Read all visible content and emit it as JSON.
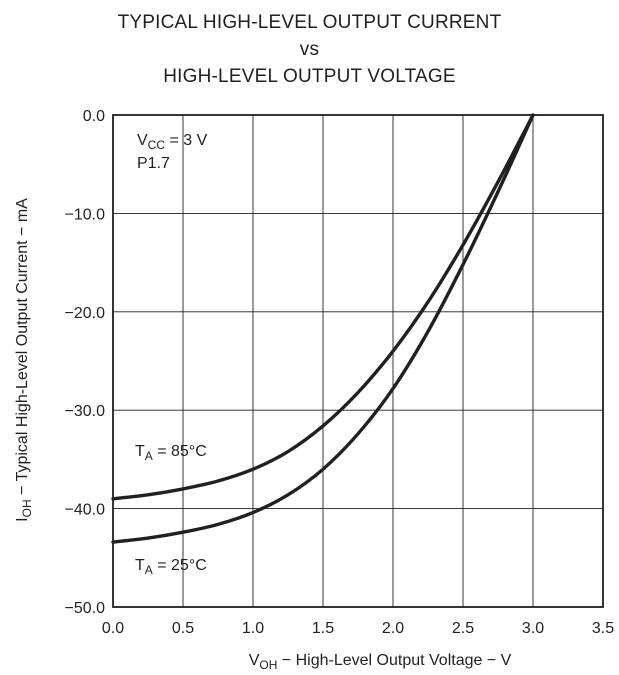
{
  "chart_data": {
    "type": "line",
    "title": [
      "TYPICAL HIGH-LEVEL OUTPUT CURRENT",
      "vs",
      "HIGH-LEVEL OUTPUT VOLTAGE"
    ],
    "xlabel": {
      "main": "V",
      "sub": "OH",
      "rest": " − High-Level Output Voltage − V"
    },
    "ylabel": {
      "main": "I",
      "sub": "OH",
      "rest": " − Typical High-Level Output Current − mA"
    },
    "xlim": [
      0.0,
      3.5
    ],
    "ylim": [
      -50.0,
      0.0
    ],
    "xticks": [
      "0.0",
      "0.5",
      "1.0",
      "1.5",
      "2.0",
      "2.5",
      "3.0",
      "3.5"
    ],
    "yticks": [
      "0.0",
      "−10.0",
      "−20.0",
      "−30.0",
      "−40.0",
      "−50.0"
    ],
    "grid": true,
    "annotations": {
      "vcc": {
        "main": "V",
        "sub": "CC",
        "rest": " = 3 V"
      },
      "pin": "P1.7"
    },
    "series": [
      {
        "label": {
          "main": "T",
          "sub": "A",
          "rest": " = 85°C"
        },
        "x": [
          0.0,
          0.25,
          0.5,
          0.75,
          1.0,
          1.25,
          1.5,
          1.75,
          2.0,
          2.25,
          2.5,
          2.75,
          3.0
        ],
        "y": [
          -39.0,
          -38.6,
          -38.0,
          -37.2,
          -36.0,
          -34.2,
          -31.6,
          -28.2,
          -24.0,
          -19.0,
          -13.2,
          -6.8,
          0.0
        ]
      },
      {
        "label": {
          "main": "T",
          "sub": "A",
          "rest": " = 25°C"
        },
        "x": [
          0.0,
          0.25,
          0.5,
          0.75,
          1.0,
          1.25,
          1.5,
          1.75,
          2.0,
          2.25,
          2.5,
          2.75,
          3.0
        ],
        "y": [
          -43.4,
          -43.0,
          -42.4,
          -41.6,
          -40.4,
          -38.6,
          -36.0,
          -32.4,
          -27.8,
          -22.0,
          -15.2,
          -7.8,
          0.0
        ]
      }
    ]
  }
}
